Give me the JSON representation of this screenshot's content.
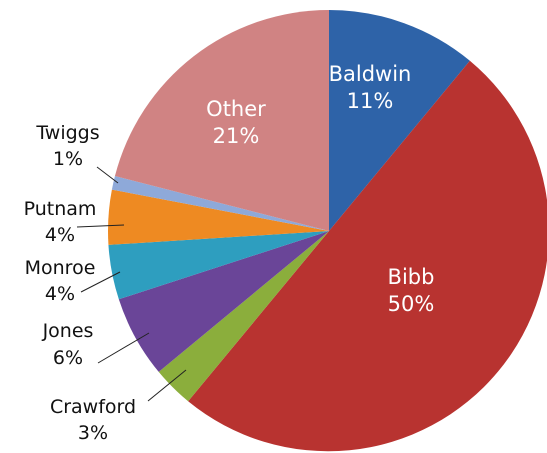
{
  "chart_data": {
    "type": "pie",
    "title": "",
    "slices": [
      {
        "label": "Baldwin",
        "value": 11,
        "value_label": "11%",
        "color": "#2E63A8"
      },
      {
        "label": "Bibb",
        "value": 50,
        "value_label": "50%",
        "color": "#B83330"
      },
      {
        "label": "Crawford",
        "value": 3,
        "value_label": "3%",
        "color": "#8BAE3C"
      },
      {
        "label": "Jones",
        "value": 6,
        "value_label": "6%",
        "color": "#6A4598"
      },
      {
        "label": "Monroe",
        "value": 4,
        "value_label": "4%",
        "color": "#2E9EBF"
      },
      {
        "label": "Putnam",
        "value": 4,
        "value_label": "4%",
        "color": "#EE8A22"
      },
      {
        "label": "Twiggs",
        "value": 1,
        "value_label": "1%",
        "color": "#8EA9D9"
      },
      {
        "label": "Other",
        "value": 21,
        "value_label": "21%",
        "color": "#D08383"
      }
    ],
    "start_position": "12 o'clock",
    "direction": "clockwise"
  }
}
